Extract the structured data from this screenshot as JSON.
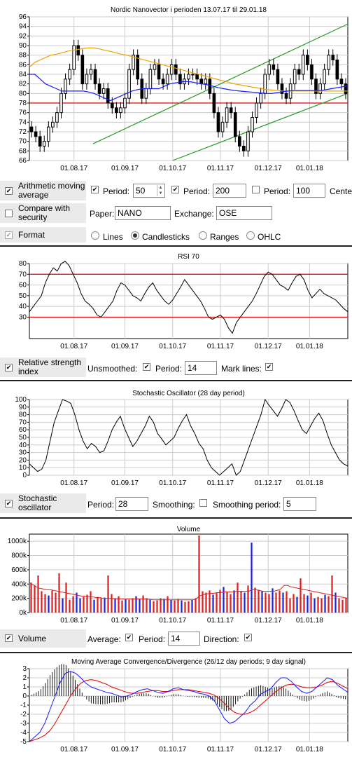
{
  "xticks": [
    "01.08.17",
    "01.09.17",
    "01.10.17",
    "01.11.17",
    "01.12.17",
    "01.01.18"
  ],
  "chart_data": [
    {
      "type": "line",
      "title": "Nordic Nanovector i perioden 13.07.17 til 29.01.18",
      "style": "candlesticks",
      "ylim": [
        66,
        96
      ],
      "yticks": [
        66,
        68,
        70,
        72,
        74,
        76,
        78,
        80,
        82,
        84,
        86,
        88,
        90,
        92,
        94,
        96
      ],
      "close": [
        72,
        71,
        69,
        70,
        73,
        74,
        76,
        80,
        83,
        85,
        90,
        88,
        82,
        84,
        85,
        82,
        80,
        81,
        78,
        77,
        76,
        77,
        79,
        85,
        88,
        83,
        79,
        81,
        85,
        86,
        83,
        82,
        84,
        86,
        84,
        82,
        83,
        84,
        84,
        83,
        82,
        83,
        80,
        76,
        72,
        74,
        77,
        76,
        71,
        69,
        68,
        72,
        75,
        78,
        80,
        84,
        86,
        85,
        82,
        80,
        79,
        82,
        85,
        84,
        88,
        86,
        83,
        80,
        82,
        85,
        88,
        87,
        83,
        82,
        80
      ],
      "ma50": [
        84,
        84,
        83,
        82,
        81.5,
        81,
        80.5,
        80.5,
        80.5,
        80.5,
        80.5,
        80.3,
        80,
        79.5,
        79,
        78.5,
        79,
        79.5,
        80,
        80.5,
        80.8,
        81,
        81,
        81,
        81,
        81.5,
        82,
        82.2,
        82.4,
        82.5,
        82.4,
        82.2,
        82,
        81.8,
        81.5,
        81.2,
        81,
        80.8,
        80.6,
        80.5,
        80.4,
        80.3,
        80.2,
        80.1,
        80,
        80,
        80.2,
        80.4,
        80.5,
        80.6,
        80.6,
        80.6,
        80.6,
        80.6,
        80.6,
        80.8,
        81,
        81.2,
        81.4,
        81.6
      ],
      "ma200": [
        85.5,
        86.5,
        87,
        87.5,
        88,
        88.2,
        88.5,
        88.8,
        89,
        89.2,
        89.4,
        89.5,
        89.5,
        89.3,
        89,
        88.8,
        88.5,
        88.2,
        88,
        87.7,
        87.4,
        87.1,
        86.8,
        86.5,
        86.2,
        85.9,
        85.6,
        85.3,
        85,
        84.7,
        84.4,
        84.1,
        83.8,
        83.5,
        83.2,
        82.9,
        82.6,
        82.3,
        82,
        81.8,
        81.6,
        81.4,
        81.2,
        81,
        80.8,
        80.7,
        80.6,
        80.5,
        80.5,
        80.5,
        80.5,
        80.5,
        80.5,
        80.5,
        80.5,
        80.5,
        80.5,
        80.5,
        80.5,
        80.5
      ],
      "reference_line": 78,
      "trend_lines": [
        {
          "x": [
            0.2,
            1
          ],
          "y": [
            69.5,
            94.5
          ]
        },
        {
          "x": [
            0.45,
            1
          ],
          "y": [
            66,
            80
          ]
        }
      ]
    },
    {
      "type": "line",
      "title": "RSI 70",
      "ylim": [
        10,
        80
      ],
      "yticks": [
        30,
        40,
        50,
        60,
        70,
        80
      ],
      "mark_lines": [
        70,
        30
      ],
      "values": [
        35,
        40,
        45,
        50,
        62,
        70,
        76,
        73,
        80,
        82,
        78,
        70,
        62,
        52,
        45,
        42,
        38,
        32,
        30,
        35,
        40,
        45,
        55,
        62,
        60,
        55,
        50,
        48,
        45,
        52,
        58,
        62,
        55,
        50,
        45,
        42,
        46,
        52,
        58,
        65,
        60,
        55,
        50,
        45,
        38,
        30,
        28,
        30,
        32,
        28,
        20,
        15,
        25,
        30,
        35,
        40,
        45,
        52,
        60,
        68,
        72,
        70,
        65,
        60,
        58,
        55,
        62,
        68,
        70,
        65,
        55,
        48,
        52,
        56,
        52,
        50,
        48,
        46,
        42,
        38,
        35
      ]
    },
    {
      "type": "line",
      "title": "Stochastic Oscillator (28 day period)",
      "ylim": [
        0,
        100
      ],
      "yticks": [
        0,
        10,
        20,
        30,
        40,
        50,
        60,
        70,
        80,
        90,
        100
      ],
      "values": [
        15,
        10,
        5,
        8,
        20,
        45,
        70,
        85,
        100,
        98,
        95,
        80,
        60,
        45,
        35,
        42,
        38,
        30,
        32,
        45,
        60,
        70,
        78,
        62,
        50,
        38,
        45,
        55,
        65,
        78,
        70,
        55,
        48,
        40,
        45,
        50,
        62,
        72,
        80,
        65,
        55,
        42,
        35,
        20,
        10,
        5,
        0,
        5,
        10,
        15,
        0,
        5,
        20,
        35,
        50,
        65,
        80,
        100,
        92,
        85,
        78,
        88,
        100,
        96,
        85,
        72,
        60,
        55,
        65,
        75,
        82,
        72,
        55,
        40,
        30,
        20,
        15,
        12
      ]
    },
    {
      "type": "bar",
      "title": "Volume",
      "ylim": [
        0,
        1100000
      ],
      "yticks": [
        "0k",
        "200k",
        "400k",
        "600k",
        "800k",
        "1000k"
      ],
      "values": [
        420,
        380,
        520,
        300,
        260,
        240,
        310,
        280,
        550,
        200,
        420,
        180,
        230,
        280,
        200,
        220,
        250,
        300,
        180,
        220,
        200,
        210,
        520,
        260,
        200,
        230,
        170,
        190,
        180,
        200,
        230,
        190,
        240,
        200,
        180,
        160,
        170,
        200,
        190,
        230,
        180,
        170,
        190,
        170,
        150,
        160,
        180,
        200,
        1080,
        300,
        280,
        310,
        250,
        280,
        320,
        360,
        290,
        260,
        310,
        420,
        300,
        280,
        380,
        980,
        350,
        320,
        300,
        280,
        260,
        340,
        280,
        310,
        280,
        300,
        200,
        260,
        220,
        480,
        260,
        240,
        280,
        200,
        220,
        200,
        250,
        230,
        520,
        280,
        200,
        180,
        210
      ],
      "average": [
        420,
        390,
        360,
        340,
        330,
        320,
        320,
        310,
        300,
        290,
        280,
        270,
        260,
        250,
        240,
        230,
        230,
        220,
        220,
        210,
        210,
        200,
        200,
        200,
        195,
        190,
        190,
        190,
        190,
        190,
        190,
        190,
        190,
        190,
        185,
        180,
        180,
        180,
        180,
        180,
        180,
        180,
        180,
        180,
        180,
        180,
        180,
        185,
        230,
        250,
        260,
        270,
        270,
        280,
        280,
        290,
        290,
        290,
        295,
        300,
        300,
        300,
        300,
        320,
        320,
        310,
        300,
        300,
        300,
        300,
        310,
        330,
        380,
        380,
        360,
        350,
        340,
        330,
        320,
        310,
        300,
        290,
        280,
        270,
        260,
        250,
        240,
        230,
        220,
        210,
        200
      ],
      "direction": [
        0,
        0,
        0,
        0,
        0,
        1,
        0,
        0,
        0,
        1,
        0,
        0,
        0,
        1,
        1,
        0,
        0,
        0,
        1,
        0,
        0,
        1,
        0,
        0,
        1,
        0,
        0,
        1,
        0,
        0,
        1,
        1,
        0,
        0,
        1,
        0,
        0,
        0,
        1,
        0,
        1,
        0,
        0,
        1,
        0,
        0,
        1,
        0,
        0,
        0,
        0,
        0,
        1,
        0,
        0,
        1,
        0,
        0,
        1,
        0,
        0,
        1,
        0,
        1,
        0,
        0,
        1,
        0,
        0,
        1,
        0,
        0,
        1,
        0,
        0,
        0,
        1,
        0,
        0,
        1,
        0,
        1,
        0,
        0,
        1,
        0,
        0,
        1,
        0,
        0,
        0
      ]
    },
    {
      "type": "line",
      "title": "Moving Average Convergence/Divergence (26/12 day periods; 9 day signal)",
      "ylim": [
        -5,
        3
      ],
      "yticks": [
        -5,
        -4,
        -3,
        -2,
        -1,
        0,
        1,
        2,
        3
      ],
      "macd": [
        -5,
        -4.5,
        -4,
        -3,
        -1.5,
        0,
        1.5,
        2.5,
        2.7,
        2.5,
        2,
        1.4,
        1,
        0.8,
        0.6,
        0.4,
        0.3,
        0.1,
        -0.1,
        0,
        0.2,
        0.5,
        0.7,
        0.8,
        0.6,
        0.4,
        0.3,
        0.5,
        0.8,
        0.9,
        0.7,
        0.6,
        0.5,
        0.3,
        0.2,
        0,
        -0.5,
        -1.5,
        -2.5,
        -3,
        -2.8,
        -2.3,
        -1.8,
        -1,
        -0.5,
        0.2,
        0.5,
        0.8,
        1.5,
        2,
        2,
        1.6,
        1,
        0.5,
        0.3,
        0.5,
        1,
        1.5,
        2,
        1.8,
        1.2,
        0.8,
        0.4
      ],
      "signal": [
        -5,
        -4.8,
        -4.6,
        -4.3,
        -3.8,
        -3,
        -2,
        -1,
        0,
        0.8,
        1.4,
        1.7,
        1.8,
        1.7,
        1.5,
        1.3,
        1,
        0.8,
        0.6,
        0.4,
        0.3,
        0.3,
        0.4,
        0.5,
        0.6,
        0.6,
        0.5,
        0.5,
        0.6,
        0.7,
        0.7,
        0.7,
        0.6,
        0.5,
        0.4,
        0.3,
        0.1,
        -0.3,
        -0.8,
        -1.4,
        -1.8,
        -2,
        -2,
        -1.8,
        -1.5,
        -1,
        -0.5,
        0,
        0.5,
        0.9,
        1.2,
        1.3,
        1.2,
        1,
        0.9,
        0.9,
        1,
        1.2,
        1.5,
        1.6,
        1.4,
        1.1,
        0.8
      ]
    }
  ],
  "controls": {
    "ma_label": "Arithmetic moving average",
    "period1_label": "Period:",
    "period1_value": "50",
    "period2_label": "Period:",
    "period2_value": "200",
    "period3_label": "Period:",
    "period3_value": "100",
    "centre_label": "Cente",
    "compare_label": "Compare with security",
    "paper_label": "Paper:",
    "paper_value": "NANO",
    "exchange_label": "Exchange:",
    "exchange_value": "OSE",
    "format_label": "Format",
    "fmt_lines": "Lines",
    "fmt_candles": "Candlesticks",
    "fmt_ranges": "Ranges",
    "fmt_ohlc": "OHLC",
    "rsi_label": "Relative strength index",
    "unsmoothed_label": "Unsmoothed:",
    "rsi_period_label": "Period:",
    "rsi_period_value": "14",
    "mark_lines_label": "Mark lines:",
    "stoch_label": "Stochastic oscillator",
    "stoch_period_label": "Period:",
    "stoch_period_value": "28",
    "smoothing_label": "Smoothing:",
    "smoothing_period_label": "Smoothing period:",
    "smoothing_period_value": "5",
    "volume_label": "Volume",
    "average_label": "Average:",
    "vol_period_label": "Period:",
    "vol_period_value": "14",
    "direction_label": "Direction:"
  },
  "colors": {
    "candle": "#000000",
    "ma50": "#1a1aff",
    "ma200": "#f0a000",
    "reference": "#e00000",
    "trend": "#2a9a2a",
    "up": "#2020e0",
    "down": "#e02020",
    "macd": "#1a1aff",
    "signal": "#e00000"
  }
}
